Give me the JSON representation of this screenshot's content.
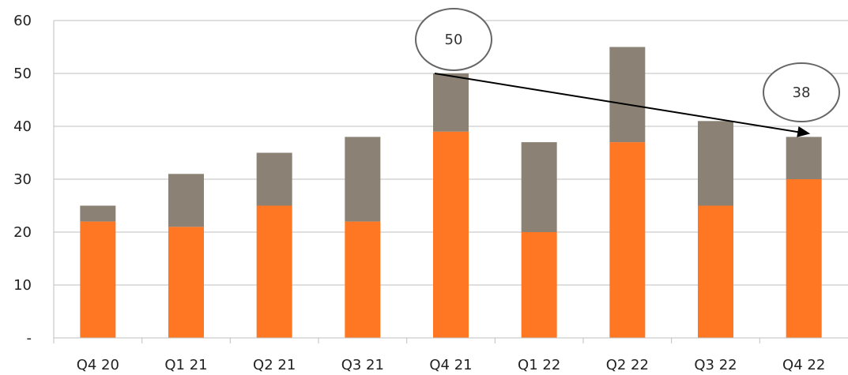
{
  "chart_data": {
    "type": "bar",
    "stacked": true,
    "categories": [
      "Q4 20",
      "Q1 21",
      "Q2 21",
      "Q3 21",
      "Q4 21",
      "Q1 22",
      "Q2 22",
      "Q3 22",
      "Q4 22"
    ],
    "series": [
      {
        "values": [
          22,
          21,
          25,
          22,
          39,
          20,
          37,
          25,
          30
        ],
        "color": "#FF7722"
      },
      {
        "values": [
          3,
          10,
          10,
          16,
          11,
          17,
          18,
          16,
          8
        ],
        "color": "#8B8275"
      }
    ],
    "totals": [
      25,
      31,
      35,
      38,
      50,
      37,
      55,
      41,
      38
    ],
    "ylim": [
      0,
      60
    ],
    "yticks": [
      0,
      10,
      20,
      30,
      40,
      50,
      60
    ],
    "ytick_labels": [
      "-",
      "10",
      "20",
      "30",
      "40",
      "50",
      "60"
    ],
    "grid": true,
    "annotations": [
      {
        "label": "50",
        "category": "Q4 21"
      },
      {
        "label": "38",
        "category": "Q4 22"
      }
    ],
    "arrow": {
      "from_category": "Q4 21",
      "from_value": 50,
      "to_category": "Q4 22",
      "to_value": 38
    },
    "title": "",
    "xlabel": "",
    "ylabel": ""
  }
}
